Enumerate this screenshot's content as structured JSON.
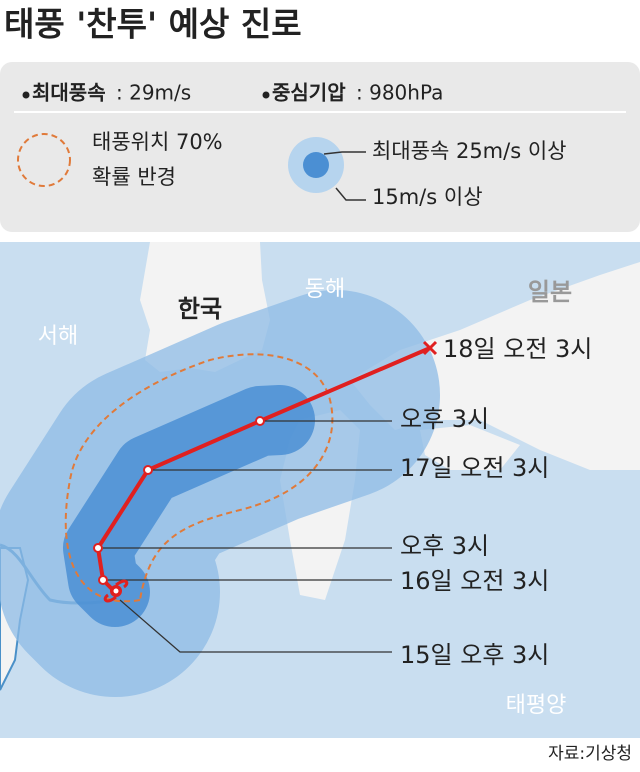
{
  "header": {
    "title": "태풍 '찬투' 예상 진로"
  },
  "legend": {
    "max_wind_label": "최대풍속",
    "max_wind_value": ": 29m/s",
    "pressure_label": "중심기압",
    "pressure_value": ": 980hPa",
    "radius_lines": [
      "태풍위치 70%",
      "확률 반경"
    ],
    "strong_wind": "최대풍속 25m/s 이상",
    "gale_wind": "15m/s 이상"
  },
  "map": {
    "regions": [
      "한국",
      "동해",
      "일본",
      "서해",
      "태평양"
    ],
    "track": [
      "18일 오전 3시",
      "오후 3시",
      "17일 오전 3시",
      "오후 3시",
      "16일 오전 3시",
      "15일 오후 3시"
    ]
  },
  "footer": {
    "source": "자료:기상청"
  }
}
